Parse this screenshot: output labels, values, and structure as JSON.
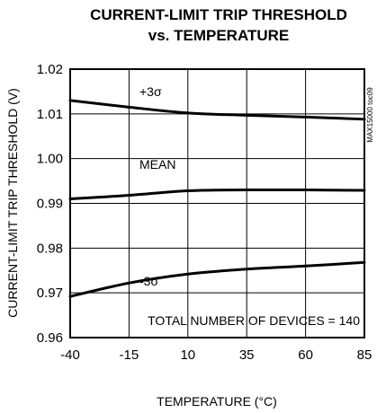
{
  "chart_data": {
    "type": "line",
    "title_lines": [
      "CURRENT-LIMIT TRIP THRESHOLD",
      "vs. TEMPERATURE"
    ],
    "xlabel": "TEMPERATURE (°C)",
    "ylabel": "CURRENT-LIMIT TRIP THRESHOLD (V)",
    "xlim": [
      -40,
      85
    ],
    "ylim": [
      0.96,
      1.02
    ],
    "x_ticks": [
      -40,
      -15,
      10,
      35,
      60,
      85
    ],
    "x_tick_labels": [
      "-40",
      "-15",
      "10",
      "35",
      "60",
      "85"
    ],
    "y_ticks": [
      0.96,
      0.97,
      0.98,
      0.99,
      1.0,
      1.01,
      1.02
    ],
    "y_tick_labels": [
      "0.96",
      "0.97",
      "0.98",
      "0.99",
      "1.00",
      "1.01",
      "1.02"
    ],
    "grid": true,
    "series": [
      {
        "name": "+3σ",
        "x": [
          -40,
          -15,
          10,
          35,
          60,
          85
        ],
        "y": [
          1.013,
          1.0115,
          1.0102,
          1.0097,
          1.0093,
          1.0088
        ]
      },
      {
        "name": "MEAN",
        "x": [
          -40,
          -15,
          10,
          35,
          60,
          85
        ],
        "y": [
          0.991,
          0.9918,
          0.9928,
          0.993,
          0.993,
          0.9929
        ]
      },
      {
        "name": "-3σ",
        "x": [
          -40,
          -15,
          10,
          35,
          60,
          85
        ],
        "y": [
          0.9692,
          0.9722,
          0.9742,
          0.9753,
          0.976,
          0.9768
        ]
      }
    ],
    "annotations": {
      "plus3sigma": "+3σ",
      "mean": "MEAN",
      "minus3sigma": "-3σ",
      "devices": "TOTAL NUMBER OF DEVICES = 140",
      "figure_code": "MAX15000 toc09"
    }
  }
}
